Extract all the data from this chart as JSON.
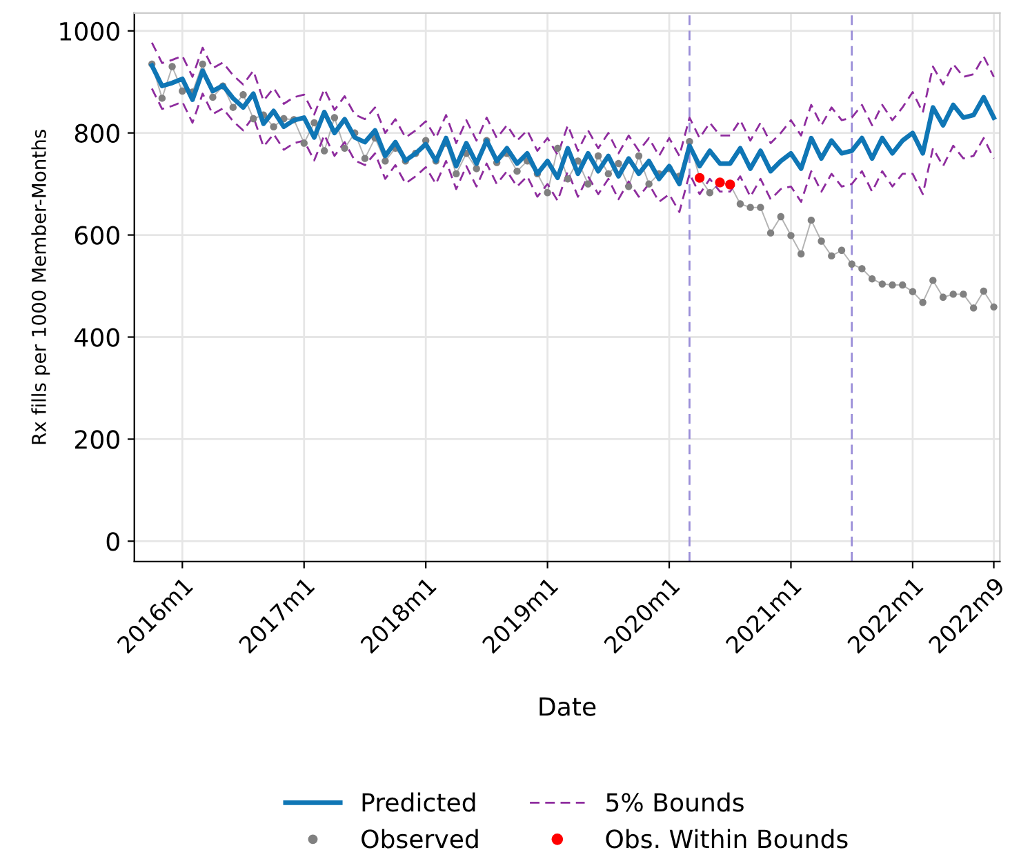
{
  "chart_data": {
    "type": "line",
    "xlabel": "Date",
    "ylabel": "Rx fills per 1000 Member-Months",
    "x": [
      "2015-10",
      "2015-11",
      "2015-12",
      "2016-01",
      "2016-02",
      "2016-03",
      "2016-04",
      "2016-05",
      "2016-06",
      "2016-07",
      "2016-08",
      "2016-09",
      "2016-10",
      "2016-11",
      "2016-12",
      "2017-01",
      "2017-02",
      "2017-03",
      "2017-04",
      "2017-05",
      "2017-06",
      "2017-07",
      "2017-08",
      "2017-09",
      "2017-10",
      "2017-11",
      "2017-12",
      "2018-01",
      "2018-02",
      "2018-03",
      "2018-04",
      "2018-05",
      "2018-06",
      "2018-07",
      "2018-08",
      "2018-09",
      "2018-10",
      "2018-11",
      "2018-12",
      "2019-01",
      "2019-02",
      "2019-03",
      "2019-04",
      "2019-05",
      "2019-06",
      "2019-07",
      "2019-08",
      "2019-09",
      "2019-10",
      "2019-11",
      "2019-12",
      "2020-01",
      "2020-02",
      "2020-03",
      "2020-04",
      "2020-05",
      "2020-06",
      "2020-07",
      "2020-08",
      "2020-09",
      "2020-10",
      "2020-11",
      "2020-12",
      "2021-01",
      "2021-02",
      "2021-03",
      "2021-04",
      "2021-05",
      "2021-06",
      "2021-07",
      "2021-08",
      "2021-09",
      "2021-10",
      "2021-11",
      "2021-12",
      "2022-01",
      "2022-02",
      "2022-03",
      "2022-04",
      "2022-05",
      "2022-06",
      "2022-07",
      "2022-08",
      "2022-09"
    ],
    "series": [
      {
        "name": "Predicted",
        "color": "#0f76b5",
        "values": [
          932,
          892,
          898,
          906,
          865,
          922,
          882,
          893,
          868,
          850,
          877,
          818,
          843,
          812,
          825,
          830,
          791,
          841,
          800,
          827,
          791,
          782,
          805,
          755,
          782,
          746,
          760,
          778,
          745,
          790,
          735,
          780,
          740,
          785,
          745,
          770,
          740,
          760,
          720,
          745,
          712,
          770,
          720,
          760,
          725,
          755,
          715,
          750,
          720,
          745,
          710,
          735,
          700,
          775,
          735,
          765,
          740,
          740,
          770,
          730,
          765,
          725,
          745,
          760,
          730,
          790,
          750,
          785,
          760,
          765,
          790,
          750,
          790,
          760,
          785,
          800,
          760,
          850,
          815,
          855,
          830,
          835,
          870,
          830
        ]
      },
      {
        "name": "Observed",
        "color": "#808080",
        "marker": "circle",
        "values": [
          935,
          868,
          930,
          882,
          880,
          935,
          870,
          892,
          850,
          875,
          828,
          835,
          812,
          828,
          826,
          780,
          820,
          765,
          830,
          770,
          800,
          750,
          790,
          745,
          770,
          745,
          760,
          785,
          745,
          780,
          720,
          760,
          730,
          785,
          742,
          760,
          725,
          745,
          720,
          683,
          770,
          710,
          745,
          700,
          755,
          720,
          740,
          695,
          755,
          700,
          720,
          730,
          715,
          783,
          712,
          683,
          703,
          699,
          661,
          654,
          654,
          604,
          636,
          599,
          563,
          629,
          588,
          559,
          570,
          543,
          534,
          514,
          504,
          502,
          502,
          489,
          468,
          511,
          478,
          484,
          484,
          457,
          490,
          459
        ]
      },
      {
        "name": "5% Bounds",
        "color": "#8e2c9e",
        "line_style": "dashed",
        "values": [
          977,
          937,
          943,
          951,
          910,
          967,
          927,
          938,
          913,
          895,
          922,
          863,
          888,
          857,
          870,
          875,
          836,
          886,
          845,
          872,
          836,
          827,
          850,
          800,
          827,
          791,
          805,
          823,
          790,
          835,
          780,
          825,
          785,
          830,
          790,
          815,
          785,
          805,
          765,
          790,
          757,
          815,
          765,
          805,
          770,
          800,
          760,
          795,
          765,
          790,
          755,
          790,
          755,
          830,
          790,
          820,
          795,
          795,
          825,
          785,
          820,
          780,
          800,
          825,
          795,
          855,
          815,
          850,
          825,
          830,
          855,
          815,
          855,
          825,
          850,
          880,
          840,
          930,
          895,
          935,
          910,
          915,
          950,
          910
        ]
      },
      {
        "name": "Obs. Within Bounds",
        "type": "scatter",
        "color": "#ff0000",
        "marker": "circle",
        "x": [
          "2020-04",
          "2020-06",
          "2020-07"
        ],
        "values": [
          712,
          703,
          699
        ]
      },
      {
        "color": "#8e2c9e",
        "line_style": "dashed",
        "values": [
          887,
          847,
          853,
          861,
          820,
          877,
          837,
          848,
          823,
          805,
          832,
          773,
          798,
          767,
          780,
          785,
          746,
          796,
          755,
          782,
          746,
          737,
          760,
          710,
          737,
          701,
          715,
          733,
          700,
          745,
          690,
          735,
          695,
          740,
          700,
          725,
          695,
          715,
          675,
          700,
          667,
          725,
          675,
          715,
          680,
          710,
          670,
          705,
          675,
          700,
          665,
          680,
          645,
          720,
          680,
          710,
          685,
          685,
          715,
          675,
          710,
          670,
          690,
          695,
          665,
          725,
          685,
          720,
          695,
          700,
          725,
          685,
          725,
          695,
          720,
          720,
          680,
          770,
          735,
          775,
          750,
          755,
          790,
          750
        ]
      }
    ],
    "ref_lines": [
      {
        "axis": "x",
        "value": "2020-03",
        "color": "#9a8ed8",
        "line_style": "dashed"
      },
      {
        "axis": "x",
        "value": "2021-07",
        "color": "#9a8ed8",
        "line_style": "dashed"
      }
    ],
    "xlim": [
      "2015-08-09",
      "2022-09-19"
    ],
    "xticks": [
      {
        "value": "2016-01",
        "label": "2016m1"
      },
      {
        "value": "2017-01",
        "label": "2017m1"
      },
      {
        "value": "2018-01",
        "label": "2018m1"
      },
      {
        "value": "2019-01",
        "label": "2019m1"
      },
      {
        "value": "2020-01",
        "label": "2020m1"
      },
      {
        "value": "2021-01",
        "label": "2021m1"
      },
      {
        "value": "2022-01",
        "label": "2022m1"
      },
      {
        "value": "2022-09",
        "label": "2022m9"
      }
    ],
    "ylim": [
      -40,
      1035
    ],
    "yticks": [
      0,
      200,
      400,
      600,
      800,
      1000
    ],
    "grid": true,
    "legend": "bottom"
  }
}
